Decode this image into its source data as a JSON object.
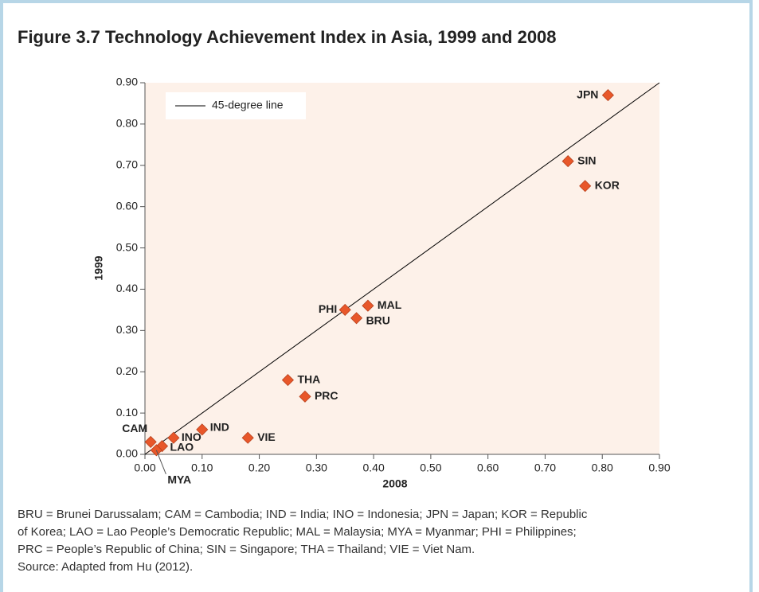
{
  "chart_data": {
    "type": "scatter",
    "title": "Figure 3.7  Technology Achievement Index in Asia, 1999 and 2008",
    "xlabel": "2008",
    "ylabel": "1999",
    "labels": [
      "JPN",
      "SIN",
      "KOR",
      "MAL",
      "PHI",
      "BRU",
      "THA",
      "PRC",
      "IND",
      "VIE",
      "INO",
      "CAM",
      "LAO",
      "MYA"
    ],
    "x": [
      0.81,
      0.74,
      0.77,
      0.39,
      0.35,
      0.37,
      0.25,
      0.28,
      0.1,
      0.18,
      0.05,
      0.01,
      0.03,
      0.02
    ],
    "y": [
      0.87,
      0.71,
      0.65,
      0.36,
      0.35,
      0.33,
      0.18,
      0.14,
      0.06,
      0.04,
      0.04,
      0.03,
      0.02,
      0.01
    ],
    "color": "#e8572a",
    "reference_line": {
      "name": "45-degree line",
      "color": "#000000"
    },
    "legend": "upper left",
    "xlim": [
      0,
      0.9
    ],
    "ylim": [
      0,
      0.9
    ],
    "xticks": [
      {
        "value": 0,
        "label": "0.00"
      },
      {
        "value": 0.1,
        "label": "0.10"
      },
      {
        "value": 0.2,
        "label": "0.20"
      },
      {
        "value": 0.3,
        "label": "0.30"
      },
      {
        "value": 0.4,
        "label": "0.40"
      },
      {
        "value": 0.5,
        "label": "0.50"
      },
      {
        "value": 0.6,
        "label": "0.60"
      },
      {
        "value": 0.7,
        "label": "0.70"
      },
      {
        "value": 0.8,
        "label": "0.80"
      },
      {
        "value": 0.9,
        "label": "0.90"
      }
    ],
    "yticks": [
      {
        "value": 0,
        "label": "0.00"
      },
      {
        "value": 0.1,
        "label": "0.10"
      },
      {
        "value": 0.2,
        "label": "0.20"
      },
      {
        "value": 0.3,
        "label": "0.30"
      },
      {
        "value": 0.4,
        "label": "0.40"
      },
      {
        "value": 0.5,
        "label": "0.50"
      },
      {
        "value": 0.6,
        "label": "0.60"
      },
      {
        "value": 0.7,
        "label": "0.70"
      },
      {
        "value": 0.8,
        "label": "0.80"
      },
      {
        "value": 0.9,
        "label": "0.90"
      }
    ],
    "notes": "BRU = Brunei Darussalam; CAM = Cambodia; IND = India; INO = Indonesia; JPN = Japan; KOR = Republic of Korea; LAO = Lao People’s Democratic Republic; MAL = Malaysia; MYA = Myanmar; PHI = Philippines; PRC = People’s Republic of China; SIN = Singapore; THA = Thailand; VIE = Viet Nam.",
    "source": "Source: Adapted from Hu (2012)."
  }
}
